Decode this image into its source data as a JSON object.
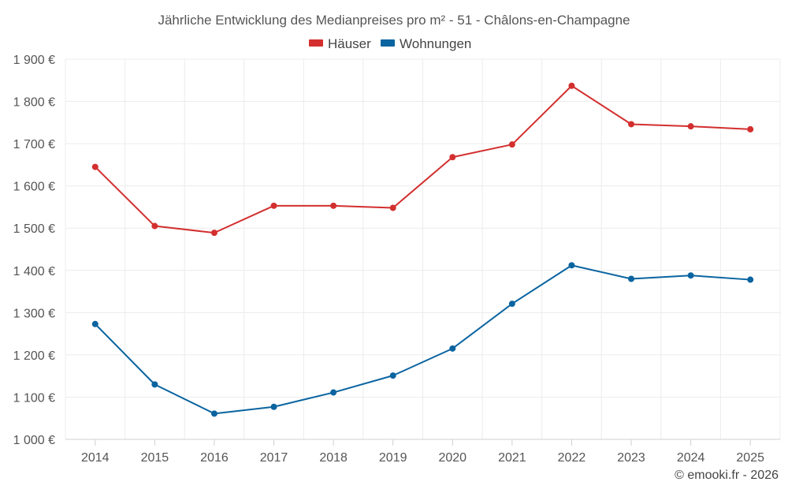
{
  "chart_data": {
    "type": "line",
    "title": "Jährliche Entwicklung des Medianpreises pro m² - 51 - Châlons-en-Champagne",
    "xlabel": "",
    "ylabel": "",
    "categories": [
      "2014",
      "2015",
      "2016",
      "2017",
      "2018",
      "2019",
      "2020",
      "2021",
      "2022",
      "2023",
      "2024",
      "2025"
    ],
    "ylim": [
      1000,
      1900
    ],
    "yticks": [
      1000,
      1100,
      1200,
      1300,
      1400,
      1500,
      1600,
      1700,
      1800,
      1900
    ],
    "ytick_labels": [
      "1 000 €",
      "1 100 €",
      "1 200 €",
      "1 300 €",
      "1 400 €",
      "1 500 €",
      "1 600 €",
      "1 700 €",
      "1 800 €",
      "1 900 €"
    ],
    "grid": true,
    "legend_position": "top-center",
    "series": [
      {
        "name": "Häuser",
        "color": "#d32f2f",
        "values": [
          1645,
          1505,
          1489,
          1553,
          1553,
          1548,
          1668,
          1698,
          1837,
          1746,
          1741,
          1734
        ]
      },
      {
        "name": "Wohnungen",
        "color": "#0a64a0",
        "values": [
          1273,
          1130,
          1061,
          1077,
          1111,
          1151,
          1215,
          1321,
          1412,
          1380,
          1388,
          1378
        ]
      }
    ]
  },
  "footer": {
    "copyright": "© emooki.fr - 2026"
  }
}
